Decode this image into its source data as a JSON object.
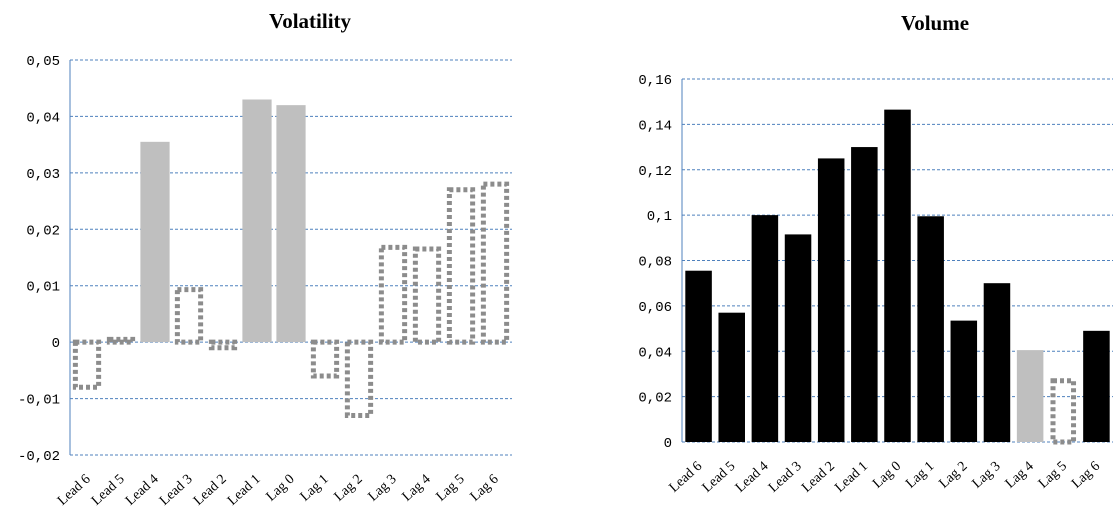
{
  "chart_data": [
    {
      "type": "bar",
      "title": "Volatility",
      "categories": [
        "Lead 6",
        "Lead 5",
        "Lead 4",
        "Lead 3",
        "Lead 2",
        "Lead 1",
        "Lag 0",
        "Lag 1",
        "Lag 2",
        "Lag 3",
        "Lag 4",
        "Lag 5",
        "Lag 6"
      ],
      "series": [
        {
          "values": [
            -0.008,
            0.0005,
            0.0355,
            0.0093,
            -0.001,
            0.043,
            0.042,
            -0.006,
            -0.013,
            0.0168,
            0.0165,
            0.027,
            0.028
          ],
          "styles": [
            "dotted",
            "dotted",
            "solid",
            "dotted",
            "dotted",
            "solid",
            "solid",
            "dotted",
            "dotted",
            "dotted",
            "dotted",
            "dotted",
            "dotted"
          ]
        }
      ],
      "yticks": [
        "0,05",
        "0,04",
        "0,03",
        "0,02",
        "0,01",
        "0",
        "-0,01",
        "-0,02"
      ],
      "ylim": [
        -0.02,
        0.05
      ],
      "grid": true
    },
    {
      "type": "bar",
      "title": "Volume",
      "categories": [
        "Lead 6",
        "Lead 5",
        "Lead 4",
        "Lead 3",
        "Lead 2",
        "Lead 1",
        "Lag 0",
        "Lag 1",
        "Lag 2",
        "Lag 3",
        "Lag 4",
        "Lag 5",
        "Lag 6"
      ],
      "series": [
        {
          "values": [
            0.0755,
            0.057,
            0.1,
            0.0915,
            0.125,
            0.13,
            0.1465,
            0.0995,
            0.0535,
            0.07,
            0.0405,
            0.027,
            0.049
          ],
          "styles": [
            "black",
            "black",
            "black",
            "black",
            "black",
            "black",
            "black",
            "black",
            "black",
            "black",
            "gray",
            "dotted",
            "black"
          ]
        }
      ],
      "yticks": [
        "0,16",
        "0,14",
        "0,12",
        "0,1",
        "0,08",
        "0,06",
        "0,04",
        "0,02",
        "0"
      ],
      "ylim": [
        0,
        0.16
      ],
      "grid": true
    }
  ],
  "colors": {
    "gray_bar": "#bfbfbf",
    "black_bar": "#000000",
    "dotted_outline": "#8c8c8c",
    "grid": "#4f81bd"
  }
}
